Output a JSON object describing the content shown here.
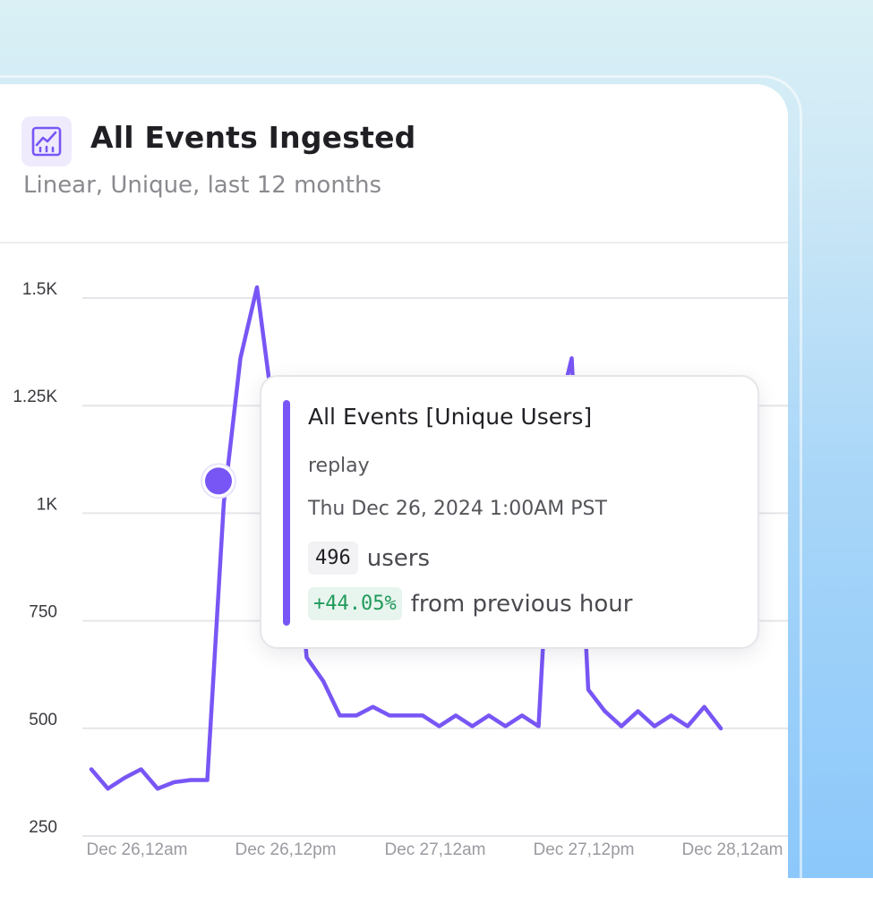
{
  "header": {
    "title": "All Events Ingested",
    "subtitle": "Linear, Unique, last 12 months",
    "icon": "line-chart-icon"
  },
  "tooltip": {
    "title": "All Events [Unique Users]",
    "event": "replay",
    "date": "Thu Dec 26, 2024 1:00AM PST",
    "count": "496",
    "unit": "users",
    "change": "+44.05%",
    "change_text": "from previous hour"
  },
  "colors": {
    "accent": "#7856f5",
    "positive": "#1f9a5b",
    "grid": "#e6e6ea"
  },
  "chart_data": {
    "type": "line",
    "title": "All Events Ingested",
    "xlabel": "",
    "ylabel": "",
    "ylim": [
      250,
      1500
    ],
    "y_ticks": [
      250,
      500,
      750,
      1000,
      1250,
      1500
    ],
    "y_tick_labels": [
      "250",
      "500",
      "750",
      "1K",
      "1.25K",
      "1.5K"
    ],
    "x_tick_labels": [
      "Dec 26,12am",
      "Dec 26,12pm",
      "Dec 27,12am",
      "Dec 27,12pm",
      "Dec 28,12am"
    ],
    "grid": true,
    "series": [
      {
        "name": "All Events [Unique Users]",
        "values": [
          405,
          360,
          385,
          405,
          360,
          375,
          380,
          380,
          1025,
          1360,
          1525,
          1230,
          1090,
          665,
          610,
          530,
          530,
          550,
          530,
          530,
          530,
          505,
          530,
          505,
          530,
          505,
          530,
          505,
          1200,
          1360,
          590,
          540,
          505,
          540,
          505,
          530,
          505,
          550,
          500
        ]
      }
    ],
    "highlight": {
      "index": 8,
      "value": 1025
    }
  }
}
